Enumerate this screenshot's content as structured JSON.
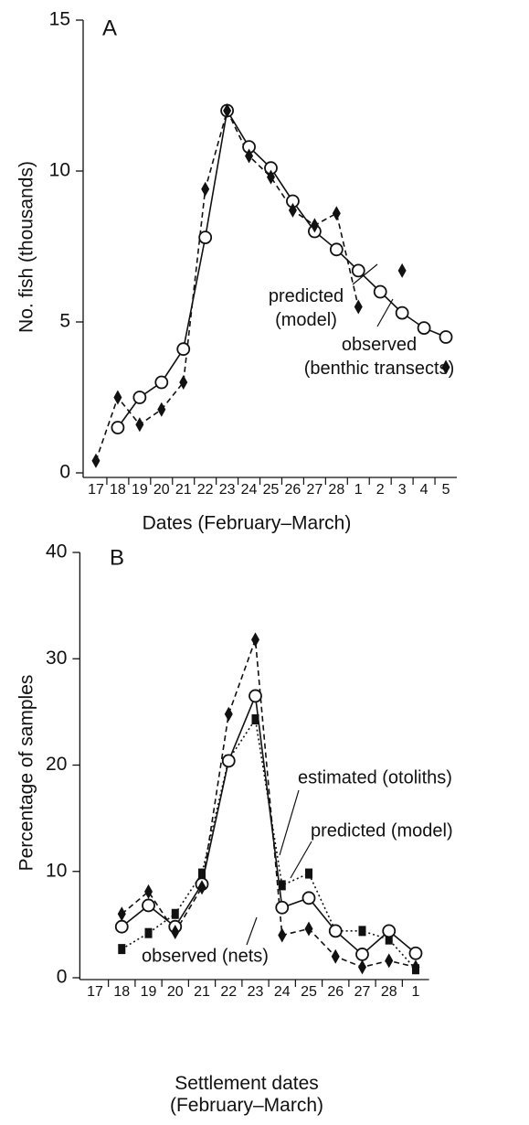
{
  "chart_data": [
    {
      "type": "line",
      "panel": "A",
      "y_label": "No. fish (thousands)",
      "x_label": "Dates (February–March)",
      "categories": [
        "17",
        "18",
        "19",
        "20",
        "21",
        "22",
        "23",
        "24",
        "25",
        "26",
        "27",
        "28",
        "1",
        "2",
        "3",
        "4",
        "5"
      ],
      "ylim": [
        0,
        15
      ],
      "yticks": [
        0,
        5,
        10,
        15
      ],
      "series": [
        {
          "name": "predicted\n(model)",
          "color": "#111",
          "marker": "circle",
          "dash": "solid",
          "values": [
            null,
            1.5,
            2.5,
            3.0,
            4.1,
            7.8,
            12.0,
            10.8,
            10.1,
            9.0,
            8.0,
            7.4,
            6.7,
            6.0,
            5.3,
            4.8,
            4.5
          ]
        },
        {
          "name": "observed\n(benthic transects)",
          "color": "#111",
          "marker": "diamond",
          "dash": "dashed",
          "values": [
            0.4,
            2.5,
            1.6,
            2.1,
            3.0,
            9.4,
            12.0,
            10.5,
            9.8,
            8.7,
            8.2,
            8.6,
            5.5,
            null,
            6.7,
            null,
            3.5
          ]
        }
      ]
    },
    {
      "type": "line",
      "panel": "B",
      "y_label": "Percentage of samples",
      "x_label": "Settlement dates\n(February–March)",
      "categories": [
        "17",
        "18",
        "19",
        "20",
        "21",
        "22",
        "23",
        "24",
        "25",
        "26",
        "27",
        "28",
        "1"
      ],
      "ylim": [
        0,
        40
      ],
      "yticks": [
        0,
        10,
        20,
        30,
        40
      ],
      "series": [
        {
          "name": "estimated (otoliths)",
          "color": "#111",
          "marker": "square",
          "dash": "dotted",
          "values": [
            null,
            2.7,
            4.2,
            6.0,
            9.8,
            20.5,
            24.3,
            8.7,
            9.8,
            4.4,
            4.4,
            3.6,
            0.8
          ]
        },
        {
          "name": "predicted (model)",
          "color": "#111",
          "marker": "circle",
          "dash": "solid",
          "values": [
            null,
            4.8,
            6.8,
            4.8,
            8.8,
            20.4,
            26.5,
            6.6,
            7.5,
            4.4,
            2.2,
            4.4,
            2.3
          ]
        },
        {
          "name": "observed (nets)",
          "color": "#111",
          "marker": "diamond",
          "dash": "dashed",
          "values": [
            null,
            6.0,
            8.1,
            4.3,
            8.5,
            24.8,
            31.8,
            4.0,
            4.6,
            2.0,
            1.0,
            1.6,
            1.0
          ]
        }
      ]
    }
  ]
}
